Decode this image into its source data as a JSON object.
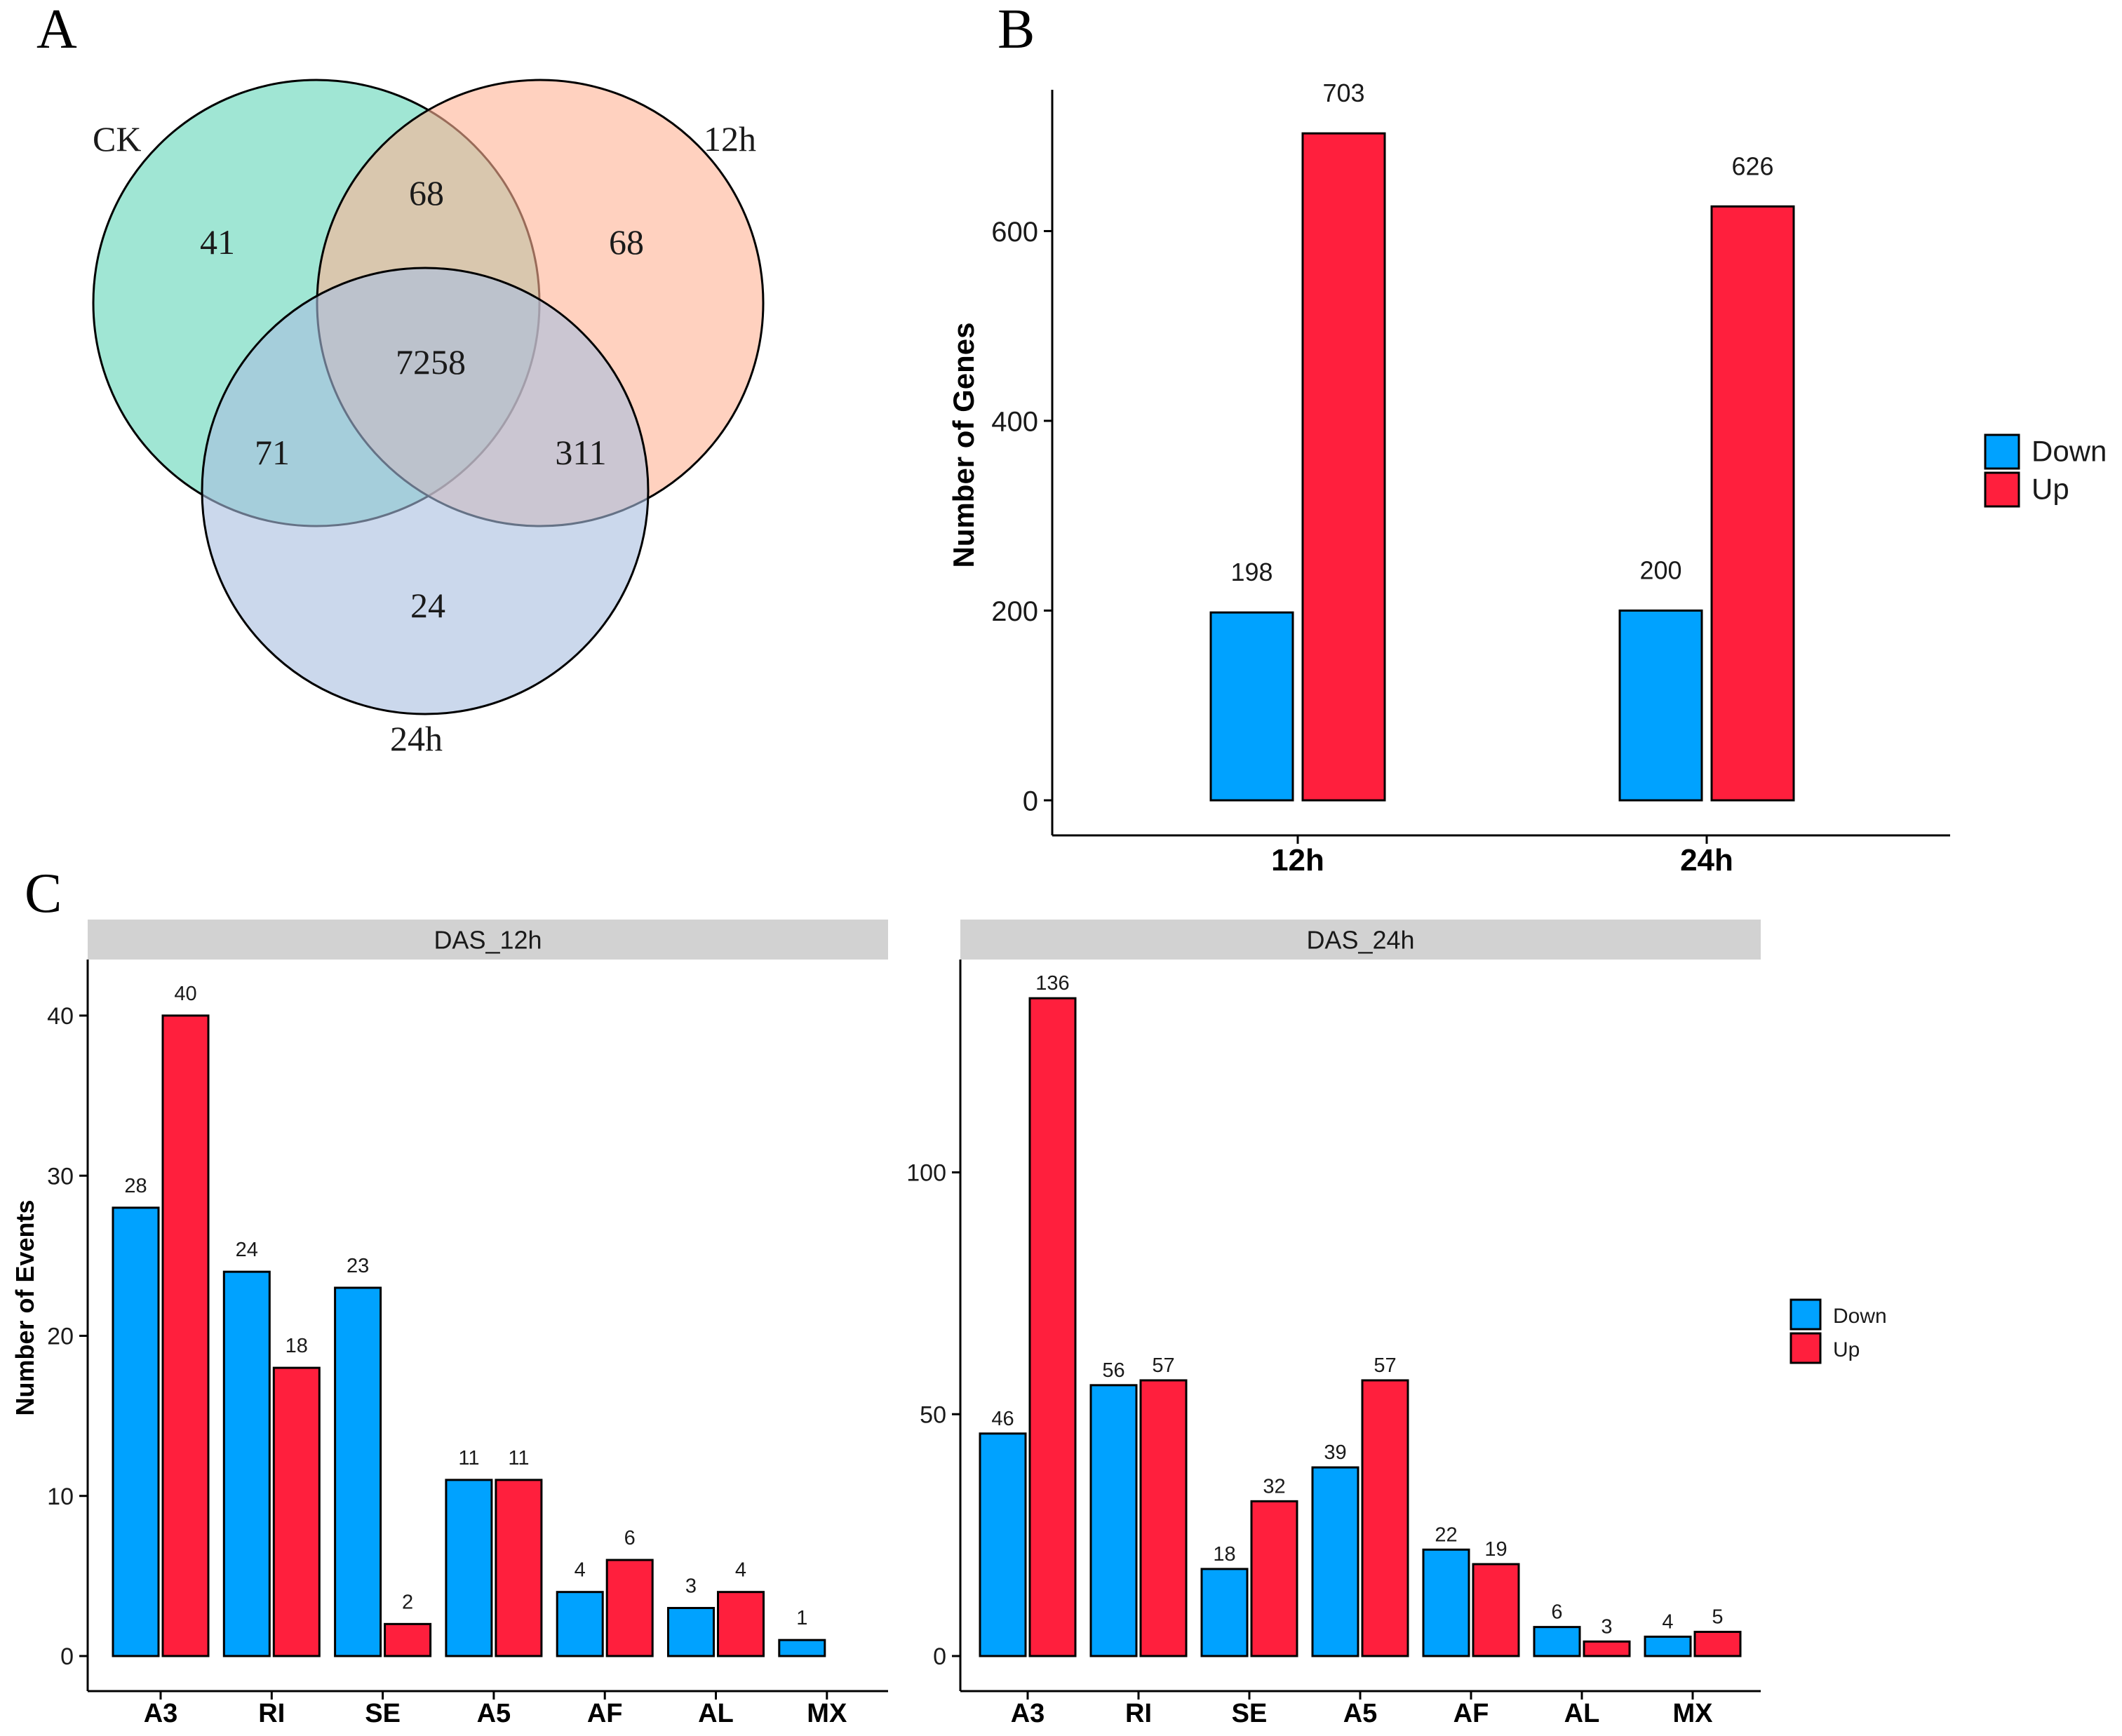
{
  "panel_labels": {
    "a": "A",
    "b": "B",
    "c": "C"
  },
  "colors": {
    "down": "#00A2FF",
    "up": "#FF1F3D",
    "ck": "#80DDC6",
    "h12": "#FFB294",
    "h24": "#A9BEDF",
    "strip": "#D2D2D2"
  },
  "chart_data": [
    {
      "type": "venn",
      "sets": [
        "CK",
        "12h",
        "24h"
      ],
      "regions": {
        "ck_only": 41,
        "h12_only": 68,
        "h24_only": 24,
        "ck_h12": 68,
        "ck_h24": 71,
        "h12_h24": 311,
        "all": 7258
      }
    },
    {
      "type": "bar",
      "title": "",
      "xlabel": "",
      "ylabel": "Number of Genes",
      "categories": [
        "12h",
        "24h"
      ],
      "series": [
        {
          "name": "Down",
          "values": [
            198,
            200
          ]
        },
        {
          "name": "Up",
          "values": [
            703,
            626
          ]
        }
      ],
      "ylim": [
        0,
        780
      ],
      "yticks": [
        0,
        200,
        400,
        600
      ],
      "legend": "right"
    },
    {
      "type": "bar",
      "facet": "DAS_12h",
      "xlabel": "",
      "ylabel": "Number of Events",
      "categories": [
        "A3",
        "RI",
        "SE",
        "A5",
        "AF",
        "AL",
        "MX"
      ],
      "series": [
        {
          "name": "Down",
          "values": [
            28,
            24,
            23,
            11,
            4,
            3,
            1
          ]
        },
        {
          "name": "Up",
          "values": [
            40,
            18,
            2,
            11,
            6,
            4,
            null
          ]
        }
      ],
      "ylim": [
        0,
        43.5
      ],
      "yticks": [
        0,
        10,
        20,
        30,
        40
      ]
    },
    {
      "type": "bar",
      "facet": "DAS_24h",
      "xlabel": "",
      "ylabel": "",
      "categories": [
        "A3",
        "RI",
        "SE",
        "A5",
        "AF",
        "AL",
        "MX"
      ],
      "series": [
        {
          "name": "Down",
          "values": [
            46,
            56,
            18,
            39,
            22,
            6,
            4
          ]
        },
        {
          "name": "Up",
          "values": [
            136,
            57,
            32,
            57,
            19,
            3,
            5
          ]
        }
      ],
      "ylim": [
        0,
        144
      ],
      "yticks": [
        0,
        50,
        100
      ],
      "legend": "right"
    }
  ]
}
